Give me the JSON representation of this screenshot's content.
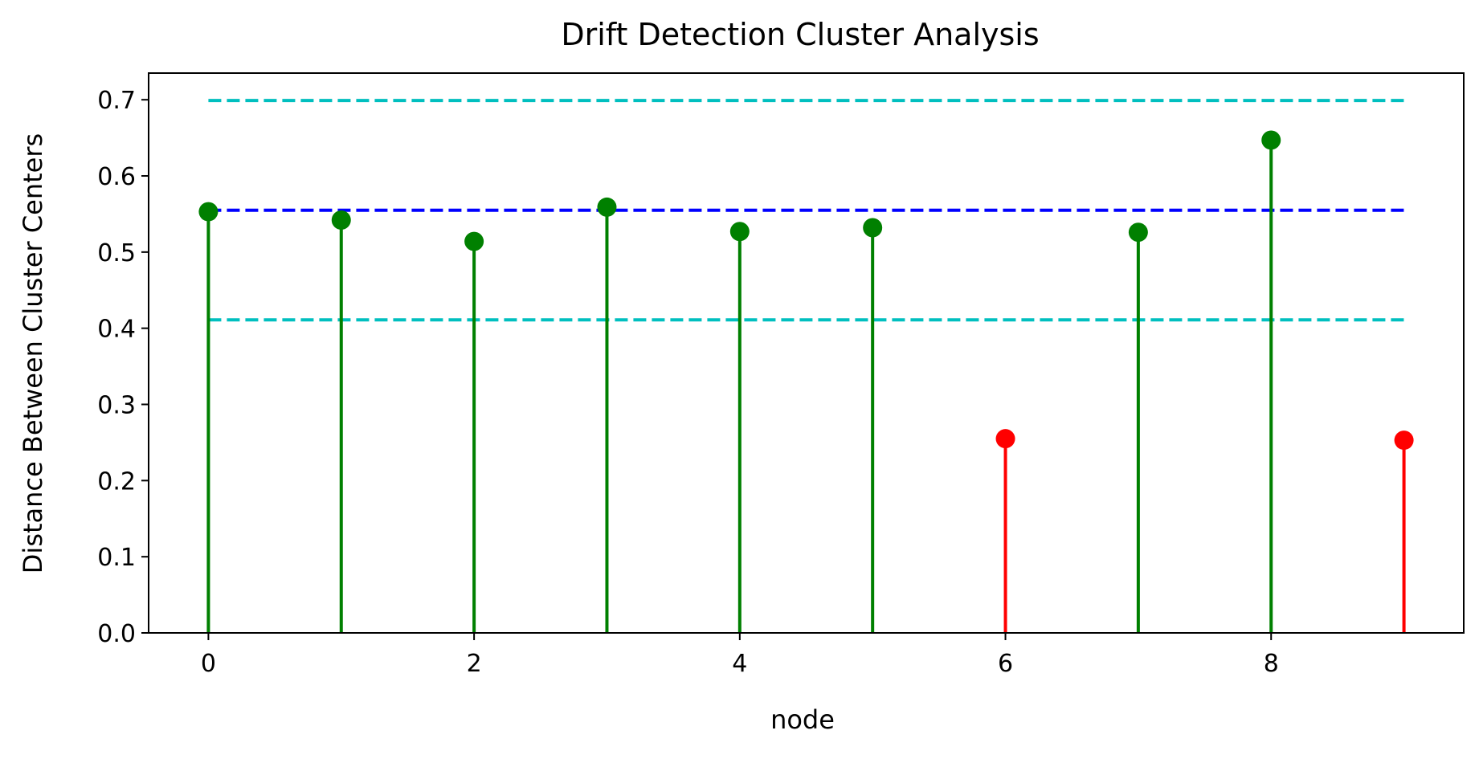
{
  "chart_data": {
    "type": "stem",
    "title": "Drift Detection Cluster Analysis",
    "xlabel": "node",
    "ylabel": "Distance Between Cluster Centers",
    "xlim": [
      -0.45,
      9.45
    ],
    "ylim": [
      0,
      0.735
    ],
    "xticks": [
      0,
      2,
      4,
      6,
      8
    ],
    "xtick_labels": [
      "0",
      "2",
      "4",
      "6",
      "8"
    ],
    "yticks": [
      0.0,
      0.1,
      0.2,
      0.3,
      0.4,
      0.5,
      0.6,
      0.7
    ],
    "ytick_labels": [
      "0.0",
      "0.1",
      "0.2",
      "0.3",
      "0.4",
      "0.5",
      "0.6",
      "0.7"
    ],
    "x": [
      0,
      1,
      2,
      3,
      4,
      5,
      6,
      7,
      8,
      9
    ],
    "values": [
      0.553,
      0.542,
      0.514,
      0.559,
      0.527,
      0.532,
      0.255,
      0.526,
      0.647,
      0.253
    ],
    "colors": [
      "#008000",
      "#008000",
      "#008000",
      "#008000",
      "#008000",
      "#008000",
      "#ff0000",
      "#008000",
      "#008000",
      "#ff0000"
    ],
    "reference_lines": [
      {
        "y": 0.699,
        "x_range": [
          0,
          9
        ],
        "color": "#00bfbf",
        "style": "dashed"
      },
      {
        "y": 0.555,
        "x_range": [
          0,
          9
        ],
        "color": "#0000ff",
        "style": "dashed"
      },
      {
        "y": 0.411,
        "x_range": [
          0,
          9
        ],
        "color": "#00bfbf",
        "style": "dashed"
      }
    ],
    "grid": false,
    "legend": "none"
  }
}
